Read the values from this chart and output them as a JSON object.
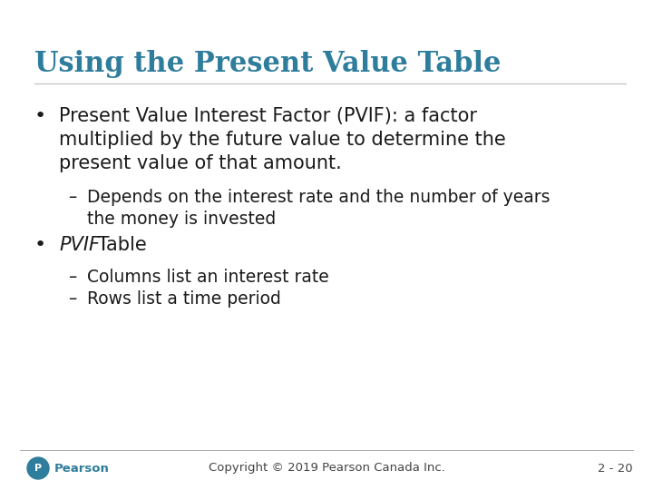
{
  "title": "Using the Present Value Table",
  "title_color": "#2E7D9C",
  "background_color": "#FFFFFF",
  "bullet1_line1": "Present Value Interest Factor (PVIF): a factor",
  "bullet1_line2": "multiplied by the future value to determine the",
  "bullet1_line3": "present value of that amount.",
  "sub_bullet1_line1": "Depends on the interest rate and the number of years",
  "sub_bullet1_line2": "the money is invested",
  "bullet2_italic": "PVIF",
  "bullet2_rest": " Table",
  "sub_bullet2a": "Columns list an interest rate",
  "sub_bullet2b": "Rows list a time period",
  "footer_left": "Pearson",
  "footer_center": "Copyright © 2019 Pearson Canada Inc.",
  "footer_right": "2 - 20",
  "text_color": "#1a1a1a",
  "footer_color": "#444444",
  "title_fontsize": 22,
  "body_fontsize": 15,
  "sub_fontsize": 13.5,
  "footer_fontsize": 9.5,
  "pearson_logo_color": "#2E7D9C"
}
